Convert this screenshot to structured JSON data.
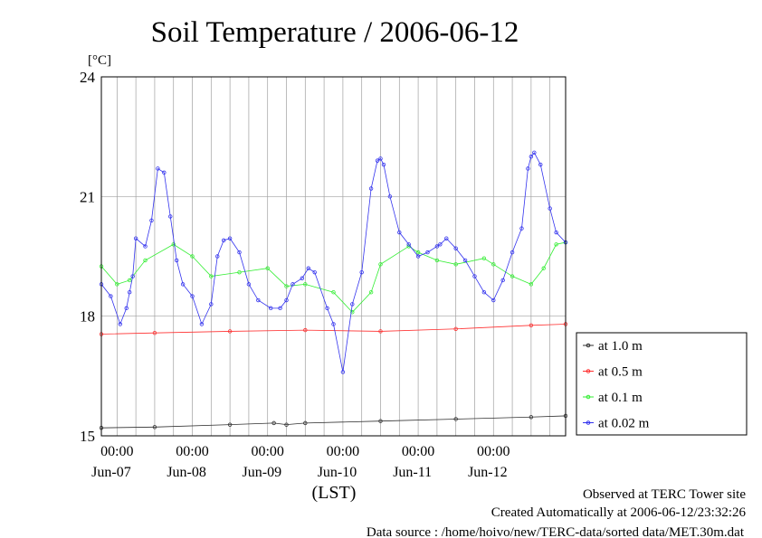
{
  "chart_data": {
    "type": "line",
    "title": "Soil Temperature / 2006-06-12",
    "ylabel": "[°C]",
    "xlabel": "(LST)",
    "ylim": [
      15,
      24
    ],
    "yticks": [
      15,
      18,
      21,
      24
    ],
    "xlim": [
      "2006-06-06T19:00",
      "2006-06-12T23:00"
    ],
    "xticks": [
      {
        "time": "2006-06-07T00:00",
        "label": "00:00",
        "date_label": "Jun-07"
      },
      {
        "time": "2006-06-08T00:00",
        "label": "00:00",
        "date_label": "Jun-08"
      },
      {
        "time": "2006-06-09T00:00",
        "label": "00:00",
        "date_label": "Jun-09"
      },
      {
        "time": "2006-06-10T00:00",
        "label": "00:00",
        "date_label": "Jun-10"
      },
      {
        "time": "2006-06-11T00:00",
        "label": "00:00",
        "date_label": "Jun-11"
      },
      {
        "time": "2006-06-12T00:00",
        "label": "00:00",
        "date_label": ""
      }
    ],
    "date_labels_extra": [
      "Jun-12"
    ],
    "grid": true,
    "legend_position": "right",
    "series": [
      {
        "name": "at 1.0 m",
        "color": "#303030",
        "x": [
          "2006-06-06T19:00",
          "2006-06-07T12:00",
          "2006-06-08T12:00",
          "2006-06-09T02:00",
          "2006-06-09T06:00",
          "2006-06-09T12:00",
          "2006-06-10T12:00",
          "2006-06-11T12:00",
          "2006-06-12T12:00",
          "2006-06-12T23:00"
        ],
        "y": [
          15.2,
          15.22,
          15.28,
          15.32,
          15.28,
          15.32,
          15.37,
          15.42,
          15.47,
          15.5
        ]
      },
      {
        "name": "at 0.5 m",
        "color": "#ff3030",
        "x": [
          "2006-06-06T19:00",
          "2006-06-07T12:00",
          "2006-06-08T12:00",
          "2006-06-09T12:00",
          "2006-06-10T12:00",
          "2006-06-11T12:00",
          "2006-06-12T12:00",
          "2006-06-12T23:00"
        ],
        "y": [
          17.55,
          17.58,
          17.62,
          17.65,
          17.62,
          17.68,
          17.77,
          17.8
        ]
      },
      {
        "name": "at 0.1 m",
        "color": "#33ee33",
        "x": [
          "2006-06-06T19:00",
          "2006-06-07T00:00",
          "2006-06-07T04:00",
          "2006-06-07T09:00",
          "2006-06-07T18:00",
          "2006-06-08T00:00",
          "2006-06-08T06:00",
          "2006-06-08T15:00",
          "2006-06-09T00:00",
          "2006-06-09T06:00",
          "2006-06-09T12:00",
          "2006-06-09T21:00",
          "2006-06-10T03:00",
          "2006-06-10T09:00",
          "2006-06-10T12:00",
          "2006-06-10T21:00",
          "2006-06-11T00:00",
          "2006-06-11T06:00",
          "2006-06-11T12:00",
          "2006-06-11T21:00",
          "2006-06-12T00:00",
          "2006-06-12T06:00",
          "2006-06-12T12:00",
          "2006-06-12T16:00",
          "2006-06-12T20:00",
          "2006-06-12T23:00"
        ],
        "y": [
          19.25,
          18.8,
          18.9,
          19.4,
          19.8,
          19.5,
          19.0,
          19.1,
          19.2,
          18.75,
          18.8,
          18.6,
          18.1,
          18.6,
          19.3,
          19.75,
          19.6,
          19.4,
          19.3,
          19.45,
          19.3,
          19.0,
          18.8,
          19.2,
          19.8,
          19.85
        ]
      },
      {
        "name": "at 0.02 m",
        "color": "#3333ee",
        "x": [
          "2006-06-06T19:00",
          "2006-06-06T22:00",
          "2006-06-07T01:00",
          "2006-06-07T03:00",
          "2006-06-07T04:00",
          "2006-06-07T05:00",
          "2006-06-07T06:00",
          "2006-06-07T09:00",
          "2006-06-07T11:00",
          "2006-06-07T13:00",
          "2006-06-07T15:00",
          "2006-06-07T17:00",
          "2006-06-07T19:00",
          "2006-06-07T21:00",
          "2006-06-08T00:00",
          "2006-06-08T03:00",
          "2006-06-08T06:00",
          "2006-06-08T08:00",
          "2006-06-08T10:00",
          "2006-06-08T12:00",
          "2006-06-08T15:00",
          "2006-06-08T18:00",
          "2006-06-08T21:00",
          "2006-06-09T01:00",
          "2006-06-09T04:00",
          "2006-06-09T06:00",
          "2006-06-09T08:00",
          "2006-06-09T11:00",
          "2006-06-09T13:00",
          "2006-06-09T15:00",
          "2006-06-09T19:00",
          "2006-06-09T21:00",
          "2006-06-10T00:00",
          "2006-06-10T03:00",
          "2006-06-10T06:00",
          "2006-06-10T09:00",
          "2006-06-10T11:00",
          "2006-06-10T12:00",
          "2006-06-10T13:00",
          "2006-06-10T15:00",
          "2006-06-10T18:00",
          "2006-06-10T21:00",
          "2006-06-11T00:00",
          "2006-06-11T03:00",
          "2006-06-11T06:00",
          "2006-06-11T07:00",
          "2006-06-11T09:00",
          "2006-06-11T12:00",
          "2006-06-11T15:00",
          "2006-06-11T18:00",
          "2006-06-11T21:00",
          "2006-06-12T00:00",
          "2006-06-12T03:00",
          "2006-06-12T06:00",
          "2006-06-12T09:00",
          "2006-06-12T11:00",
          "2006-06-12T12:00",
          "2006-06-12T13:00",
          "2006-06-12T15:00",
          "2006-06-12T18:00",
          "2006-06-12T20:00",
          "2006-06-12T23:00"
        ],
        "y": [
          18.8,
          18.5,
          17.8,
          18.2,
          18.6,
          19.0,
          19.95,
          19.75,
          20.4,
          21.7,
          21.6,
          20.5,
          19.4,
          18.8,
          18.5,
          17.8,
          18.3,
          19.5,
          19.9,
          19.95,
          19.6,
          18.8,
          18.4,
          18.2,
          18.2,
          18.4,
          18.8,
          18.95,
          19.2,
          19.1,
          18.2,
          17.8,
          16.6,
          18.3,
          19.1,
          21.2,
          21.9,
          21.95,
          21.8,
          21.0,
          20.1,
          19.8,
          19.5,
          19.6,
          19.75,
          19.8,
          19.95,
          19.7,
          19.4,
          19.0,
          18.6,
          18.4,
          18.9,
          19.6,
          20.2,
          21.7,
          22.0,
          22.1,
          21.8,
          20.7,
          20.1,
          19.85
        ]
      }
    ]
  },
  "footer": {
    "line1": "Observed at TERC Tower site",
    "line2": "Created Automatically at 2006-06-12/23:32:26",
    "line3": "Data source : /home/hoivo/new/TERC-data/sorted  data/MET.30m.dat"
  }
}
